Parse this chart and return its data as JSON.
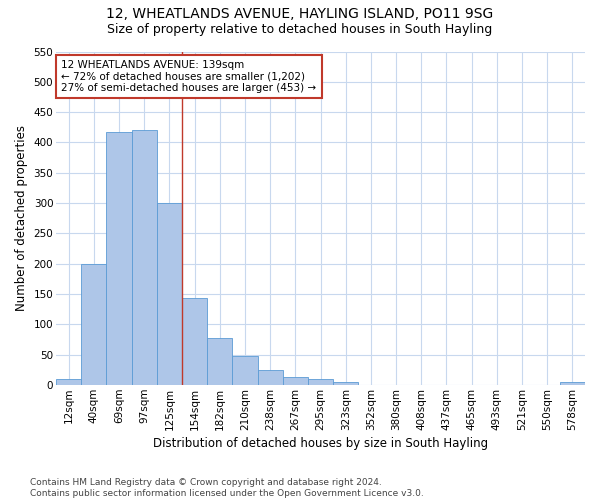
{
  "title": "12, WHEATLANDS AVENUE, HAYLING ISLAND, PO11 9SG",
  "subtitle": "Size of property relative to detached houses in South Hayling",
  "xlabel": "Distribution of detached houses by size in South Hayling",
  "ylabel": "Number of detached properties",
  "bar_labels": [
    "12sqm",
    "40sqm",
    "69sqm",
    "97sqm",
    "125sqm",
    "154sqm",
    "182sqm",
    "210sqm",
    "238sqm",
    "267sqm",
    "295sqm",
    "323sqm",
    "352sqm",
    "380sqm",
    "408sqm",
    "437sqm",
    "465sqm",
    "493sqm",
    "521sqm",
    "550sqm",
    "578sqm"
  ],
  "bar_values": [
    10,
    200,
    418,
    420,
    300,
    143,
    78,
    48,
    25,
    13,
    10,
    5,
    0,
    0,
    0,
    0,
    0,
    0,
    0,
    0,
    5
  ],
  "bar_color": "#aec6e8",
  "bar_edge_color": "#5b9bd5",
  "bg_color": "#ffffff",
  "grid_color": "#c8d8ee",
  "vline_x": 4.5,
  "vline_color": "#c0392b",
  "annotation_text": "12 WHEATLANDS AVENUE: 139sqm\n← 72% of detached houses are smaller (1,202)\n27% of semi-detached houses are larger (453) →",
  "annotation_box_color": "#c0392b",
  "ylim": [
    0,
    550
  ],
  "yticks": [
    0,
    50,
    100,
    150,
    200,
    250,
    300,
    350,
    400,
    450,
    500,
    550
  ],
  "footnote": "Contains HM Land Registry data © Crown copyright and database right 2024.\nContains public sector information licensed under the Open Government Licence v3.0.",
  "title_fontsize": 10,
  "subtitle_fontsize": 9,
  "axis_label_fontsize": 8.5,
  "tick_fontsize": 7.5,
  "annotation_fontsize": 7.5,
  "footnote_fontsize": 6.5
}
